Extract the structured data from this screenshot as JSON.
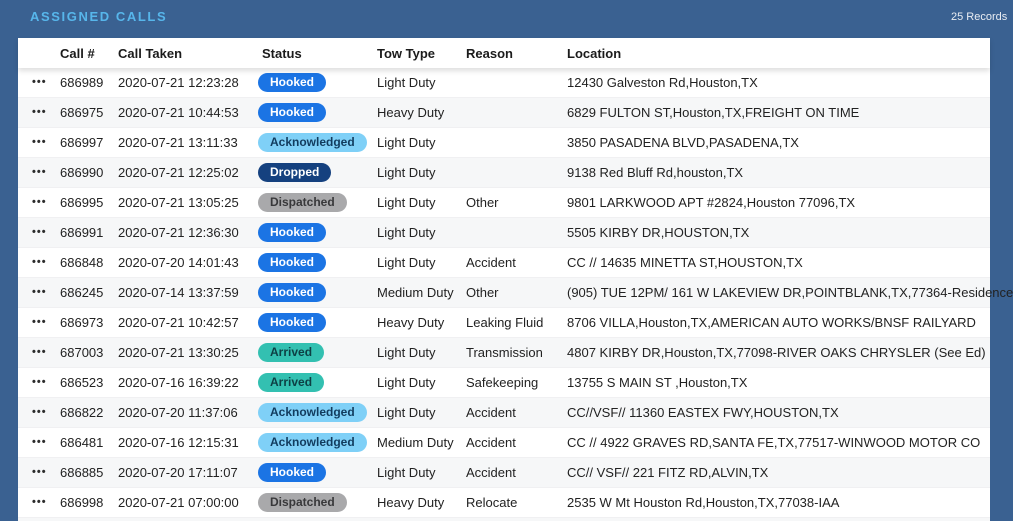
{
  "header": {
    "title": "ASSIGNED CALLS",
    "records_label": "25 Records"
  },
  "table": {
    "columns": [
      "Call #",
      "Call Taken",
      "Status",
      "Tow Type",
      "Reason",
      "Location"
    ],
    "row_actions_icon": "more-ellipsis",
    "rows": [
      {
        "call_no": "686989",
        "call_taken": "2020-07-21 12:23:28",
        "status": "Hooked",
        "tow_type": "Light Duty",
        "reason": "",
        "location": "12430 Galveston Rd,Houston,TX"
      },
      {
        "call_no": "686975",
        "call_taken": "2020-07-21 10:44:53",
        "status": "Hooked",
        "tow_type": "Heavy Duty",
        "reason": "",
        "location": "6829 FULTON ST,Houston,TX,FREIGHT ON TIME"
      },
      {
        "call_no": "686997",
        "call_taken": "2020-07-21 13:11:33",
        "status": "Acknowledged",
        "tow_type": "Light Duty",
        "reason": "",
        "location": "3850 PASADENA BLVD,PASADENA,TX"
      },
      {
        "call_no": "686990",
        "call_taken": "2020-07-21 12:25:02",
        "status": "Dropped",
        "tow_type": "Light Duty",
        "reason": "",
        "location": "9138 Red Bluff Rd,houston,TX"
      },
      {
        "call_no": "686995",
        "call_taken": "2020-07-21 13:05:25",
        "status": "Dispatched",
        "tow_type": "Light Duty",
        "reason": "Other",
        "location": "9801 LARKWOOD APT #2824,Houston 77096,TX"
      },
      {
        "call_no": "686991",
        "call_taken": "2020-07-21 12:36:30",
        "status": "Hooked",
        "tow_type": "Light Duty",
        "reason": "",
        "location": "5505 KIRBY DR,HOUSTON,TX"
      },
      {
        "call_no": "686848",
        "call_taken": "2020-07-20 14:01:43",
        "status": "Hooked",
        "tow_type": "Light Duty",
        "reason": "Accident",
        "location": "CC // 14635 MINETTA ST,HOUSTON,TX"
      },
      {
        "call_no": "686245",
        "call_taken": "2020-07-14 13:37:59",
        "status": "Hooked",
        "tow_type": "Medium Duty",
        "reason": "Other",
        "location": "(905) TUE 12PM/ 161 W LAKEVIEW DR,POINTBLANK,TX,77364-Residence"
      },
      {
        "call_no": "686973",
        "call_taken": "2020-07-21 10:42:57",
        "status": "Hooked",
        "tow_type": "Heavy Duty",
        "reason": "Leaking Fluid",
        "location": "8706 VILLA,Houston,TX,AMERICAN AUTO WORKS/BNSF RAILYARD"
      },
      {
        "call_no": "687003",
        "call_taken": "2020-07-21 13:30:25",
        "status": "Arrived",
        "tow_type": "Light Duty",
        "reason": "Transmission",
        "location": "4807 KIRBY DR,Houston,TX,77098-RIVER OAKS CHRYSLER (See Ed)"
      },
      {
        "call_no": "686523",
        "call_taken": "2020-07-16 16:39:22",
        "status": "Arrived",
        "tow_type": "Light Duty",
        "reason": "Safekeeping",
        "location": "13755 S MAIN ST ,Houston,TX"
      },
      {
        "call_no": "686822",
        "call_taken": "2020-07-20 11:37:06",
        "status": "Acknowledged",
        "tow_type": "Light Duty",
        "reason": "Accident",
        "location": "CC//VSF// 11360 EASTEX FWY,HOUSTON,TX"
      },
      {
        "call_no": "686481",
        "call_taken": "2020-07-16 12:15:31",
        "status": "Acknowledged",
        "tow_type": "Medium Duty",
        "reason": "Accident",
        "location": "CC // 4922 GRAVES RD,SANTA FE,TX,77517-WINWOOD MOTOR CO"
      },
      {
        "call_no": "686885",
        "call_taken": "2020-07-20 17:11:07",
        "status": "Hooked",
        "tow_type": "Light Duty",
        "reason": "Accident",
        "location": "CC// VSF// 221 FITZ RD,ALVIN,TX"
      },
      {
        "call_no": "686998",
        "call_taken": "2020-07-21 07:00:00",
        "status": "Dispatched",
        "tow_type": "Heavy Duty",
        "reason": "Relocate",
        "location": "2535 W Mt Houston Rd,Houston,TX,77038-IAA"
      }
    ],
    "status_colors": {
      "Hooked": {
        "bg": "#1b74e4",
        "fg": "#ffffff"
      },
      "Acknowledged": {
        "bg": "#7fd0f7",
        "fg": "#123c5e"
      },
      "Dropped": {
        "bg": "#15417f",
        "fg": "#ffffff"
      },
      "Dispatched": {
        "bg": "#a9a9ab",
        "fg": "#38383a"
      },
      "Arrived": {
        "bg": "#33c0b1",
        "fg": "#0d3f44"
      }
    }
  },
  "colors": {
    "topbar_bg": "#3a6191",
    "title_text": "#57b6eb",
    "zebra_row": "#f6f7f8"
  }
}
